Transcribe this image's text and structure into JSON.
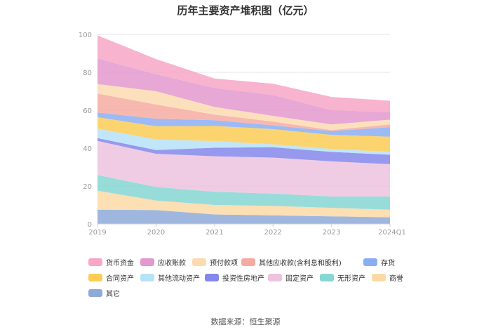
{
  "chart_data": {
    "type": "area",
    "stacked": true,
    "title": "历年主要资产堆积图（亿元）",
    "categories": [
      "2019",
      "2020",
      "2021",
      "2022",
      "2023",
      "2024Q1"
    ],
    "ylim": [
      0,
      100
    ],
    "yticks": [
      0,
      20,
      40,
      60,
      80,
      100
    ],
    "series": [
      {
        "name": "其它",
        "color": "#8eaad8",
        "values": [
          7.5,
          7.3,
          5.0,
          4.5,
          4.0,
          3.5
        ]
      },
      {
        "name": "商誉",
        "color": "#fbd9a6",
        "values": [
          10.0,
          5.0,
          5.0,
          5.0,
          4.5,
          4.0
        ]
      },
      {
        "name": "无形资产",
        "color": "#86d6d3",
        "values": [
          8.3,
          7.2,
          7.0,
          6.5,
          6.0,
          7.0
        ]
      },
      {
        "name": "固定资产",
        "color": "#edc3df",
        "values": [
          18.0,
          17.5,
          18.7,
          19.0,
          18.5,
          17.0
        ]
      },
      {
        "name": "投资性房地产",
        "color": "#8487ea",
        "values": [
          1.5,
          2.0,
          4.5,
          5.5,
          5.0,
          5.0
        ]
      },
      {
        "name": "其他流动资产",
        "color": "#b6e2f8",
        "values": [
          5.0,
          5.5,
          3.5,
          1.5,
          1.5,
          1.5
        ]
      },
      {
        "name": "合同资产",
        "color": "#fccd56",
        "values": [
          6.0,
          7.0,
          8.0,
          8.0,
          7.5,
          8.0
        ]
      },
      {
        "name": "存货",
        "color": "#89aef4",
        "values": [
          2.5,
          4.0,
          3.0,
          2.0,
          2.0,
          5.0
        ]
      },
      {
        "name": "其他应收款(含利息和股利)",
        "color": "#f6aba2",
        "values": [
          10.0,
          7.5,
          3.0,
          2.0,
          0.5,
          1.5
        ]
      },
      {
        "name": "预付款项",
        "color": "#fcdbb0",
        "values": [
          5.0,
          7.0,
          4.0,
          3.0,
          3.0,
          2.5
        ]
      },
      {
        "name": "应收账款",
        "color": "#e399ce",
        "values": [
          13.5,
          9.0,
          10.0,
          11.0,
          7.5,
          4.0
        ]
      },
      {
        "name": "货币资金",
        "color": "#f7a6c5",
        "values": [
          12.2,
          8.0,
          5.0,
          6.0,
          7.0,
          6.0
        ]
      }
    ],
    "legend_order": [
      "货币资金",
      "应收账款",
      "预付款项",
      "其他应收款(含利息和股利)",
      "存货",
      "合同资产",
      "其他流动资产",
      "投资性房地产",
      "固定资产",
      "无形资产",
      "商誉",
      "其它"
    ]
  },
  "source": "数据来源：恒生聚源"
}
